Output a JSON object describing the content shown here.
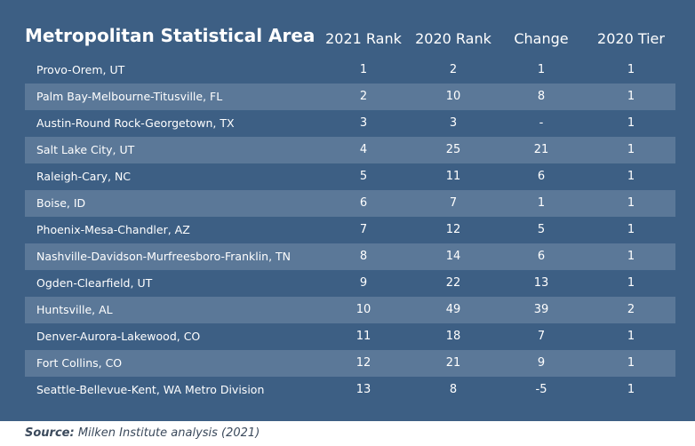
{
  "chart_data": {
    "type": "table",
    "columns": [
      "Metropolitan Statistical Area",
      "2021 Rank",
      "2020 Rank",
      "Change",
      "2020 Tier"
    ],
    "rows": [
      [
        "Provo-Orem, UT",
        "1",
        "2",
        "1",
        "1"
      ],
      [
        "Palm Bay-Melbourne-Titusville, FL",
        "2",
        "10",
        "8",
        "1"
      ],
      [
        "Austin-Round Rock-Georgetown, TX",
        "3",
        "3",
        "-",
        "1"
      ],
      [
        "Salt Lake City, UT",
        "4",
        "25",
        "21",
        "1"
      ],
      [
        "Raleigh-Cary, NC",
        "5",
        "11",
        "6",
        "1"
      ],
      [
        "Boise, ID",
        "6",
        "7",
        "1",
        "1"
      ],
      [
        "Phoenix-Mesa-Chandler, AZ",
        "7",
        "12",
        "5",
        "1"
      ],
      [
        "Nashville-Davidson-Murfreesboro-Franklin, TN",
        "8",
        "14",
        "6",
        "1"
      ],
      [
        "Ogden-Clearfield, UT",
        "9",
        "22",
        "13",
        "1"
      ],
      [
        "Huntsville, AL",
        "10",
        "49",
        "39",
        "2"
      ],
      [
        "Denver-Aurora-Lakewood, CO",
        "11",
        "18",
        "7",
        "1"
      ],
      [
        "Fort Collins, CO",
        "12",
        "21",
        "9",
        "1"
      ],
      [
        "Seattle-Bellevue-Kent, WA Metro Division",
        "13",
        "8",
        "-5",
        "1"
      ]
    ]
  },
  "source": {
    "label": "Source:",
    "text": "Milken Institute analysis (2021)"
  },
  "colors": {
    "panel": "#3d5f84",
    "row_alt": "#5b7898",
    "text": "#ffffff"
  }
}
